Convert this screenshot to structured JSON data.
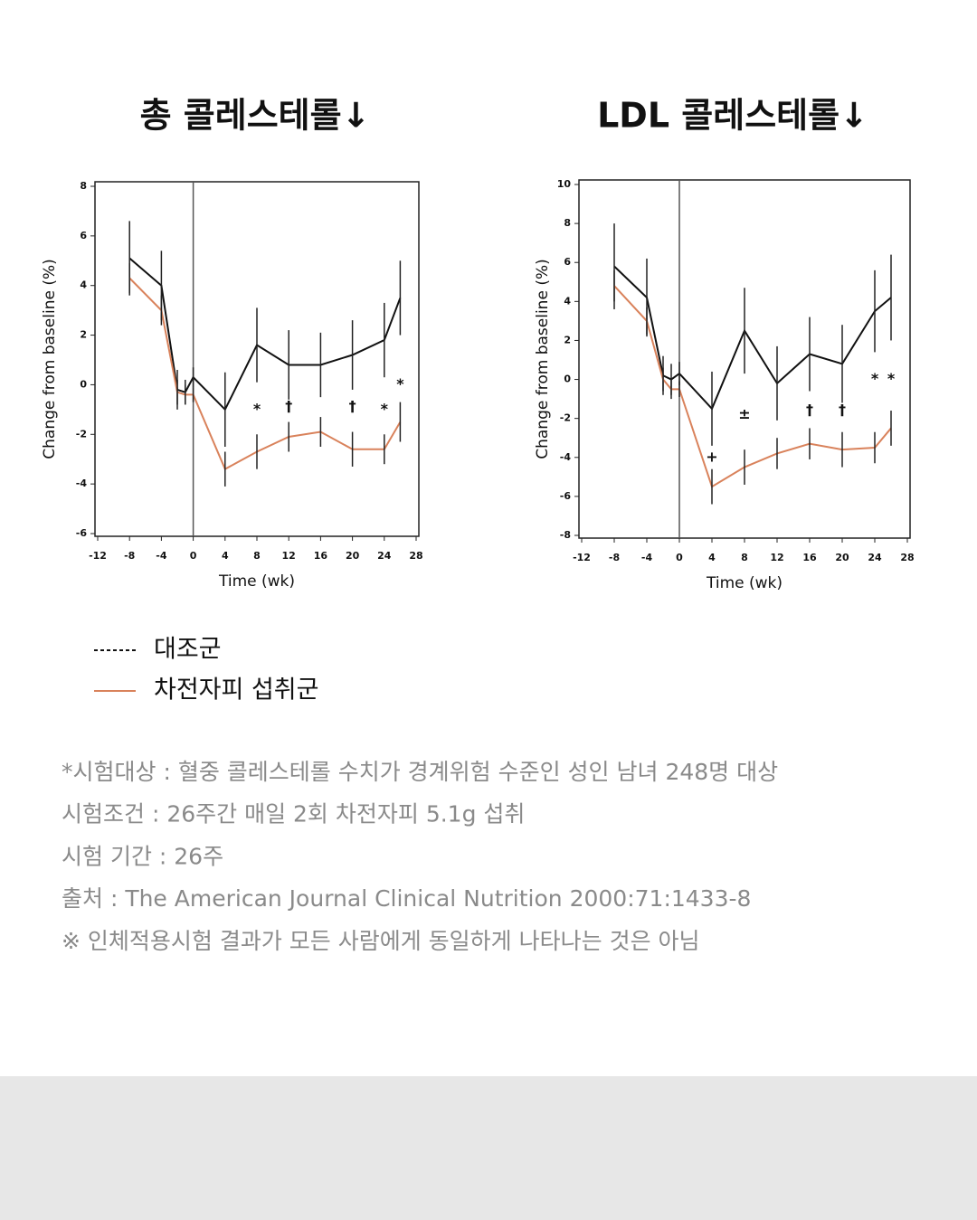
{
  "chart_data": [
    {
      "type": "line",
      "title": "총 콜레스테롤↓",
      "x_label": "Time (wk)",
      "y_label": "Change from baseline (%)",
      "x": [
        -8,
        -4,
        -2,
        -1,
        0,
        4,
        8,
        12,
        16,
        20,
        24,
        26
      ],
      "series": [
        {
          "name": "대조군",
          "color": "#111111",
          "style": "dashed",
          "values": [
            5.1,
            4.0,
            -0.2,
            -0.3,
            0.3,
            -1.0,
            1.6,
            0.8,
            0.8,
            1.2,
            1.8,
            3.5
          ],
          "errors": [
            1.5,
            1.4,
            0.8,
            0.5,
            0.4,
            1.5,
            1.5,
            1.4,
            1.3,
            1.4,
            1.5,
            1.5
          ]
        },
        {
          "name": "차전자피 섭취군",
          "color": "#d9825b",
          "style": "solid",
          "values": [
            4.3,
            3.0,
            -0.3,
            -0.4,
            -0.4,
            -3.4,
            -2.7,
            -2.1,
            -1.9,
            -2.6,
            -2.6,
            -1.5
          ],
          "errors": [
            0.6,
            0.6,
            0.5,
            0.4,
            0.3,
            0.7,
            0.7,
            0.6,
            0.6,
            0.7,
            0.6,
            0.8
          ]
        }
      ],
      "annotations": [
        {
          "x": 8,
          "y": -1.0,
          "text": "*"
        },
        {
          "x": 12,
          "y": -0.9,
          "text": "†"
        },
        {
          "x": 20,
          "y": -0.9,
          "text": "†"
        },
        {
          "x": 24,
          "y": -1.0,
          "text": "*"
        },
        {
          "x": 26,
          "y": 0.0,
          "text": "*"
        }
      ],
      "vline": 0,
      "xlim": [
        -12,
        28
      ],
      "xticks": [
        -12,
        -8,
        -4,
        0,
        4,
        8,
        12,
        16,
        20,
        24,
        28
      ],
      "ylim": [
        -6,
        8
      ],
      "yticks": [
        -6,
        -4,
        -2,
        0,
        2,
        4,
        6,
        8
      ]
    },
    {
      "type": "line",
      "title": "LDL 콜레스테롤↓",
      "x_label": "Time (wk)",
      "y_label": "Change from baseline (%)",
      "x": [
        -8,
        -4,
        -2,
        -1,
        0,
        4,
        8,
        12,
        16,
        20,
        24,
        26
      ],
      "series": [
        {
          "color": "#111111",
          "style": "dashed",
          "values": [
            5.8,
            4.2,
            0.2,
            0.0,
            0.3,
            -1.5,
            2.5,
            -0.2,
            1.3,
            0.8,
            3.5,
            4.2
          ],
          "errors": [
            2.2,
            2.0,
            1.0,
            0.8,
            0.6,
            1.9,
            2.2,
            1.9,
            1.9,
            2.0,
            2.1,
            2.2
          ]
        },
        {
          "color": "#d9825b",
          "style": "solid",
          "values": [
            4.8,
            3.0,
            0.0,
            -0.5,
            -0.5,
            -5.5,
            -4.5,
            -3.8,
            -3.3,
            -3.6,
            -3.5,
            -2.5
          ],
          "errors": [
            0.8,
            0.7,
            0.6,
            0.5,
            0.4,
            0.9,
            0.9,
            0.8,
            0.8,
            0.9,
            0.8,
            0.9
          ]
        }
      ],
      "annotations": [
        {
          "x": 4,
          "y": -4.0,
          "text": "+"
        },
        {
          "x": 8,
          "y": -1.8,
          "text": "±"
        },
        {
          "x": 16,
          "y": -1.6,
          "text": "†"
        },
        {
          "x": 20,
          "y": -1.6,
          "text": "†"
        },
        {
          "x": 24,
          "y": 0.0,
          "text": "*"
        },
        {
          "x": 26,
          "y": 0.0,
          "text": "*"
        }
      ],
      "vline": 0,
      "xlim": [
        -12,
        28
      ],
      "xticks": [
        -12,
        -8,
        -4,
        0,
        4,
        8,
        12,
        16,
        20,
        24,
        28
      ],
      "ylim": [
        -8,
        10
      ],
      "yticks": [
        -8,
        -6,
        -4,
        -2,
        0,
        2,
        4,
        6,
        8,
        10
      ]
    }
  ],
  "footnotes": [
    "*시험대상 : 혈중 콜레스테롤 수치가 경계위험 수준인 성인 남녀 248명 대상",
    "시험조건 : 26주간 매일 2회 차전자피 5.1g 섭취",
    "시험 기간 : 26주",
    "출처 : The American Journal Clinical Nutrition 2000:71:1433-8",
    "※ 인체적용시험 결과가 모든 사람에게 동일하게 나타나는 것은 아님"
  ]
}
